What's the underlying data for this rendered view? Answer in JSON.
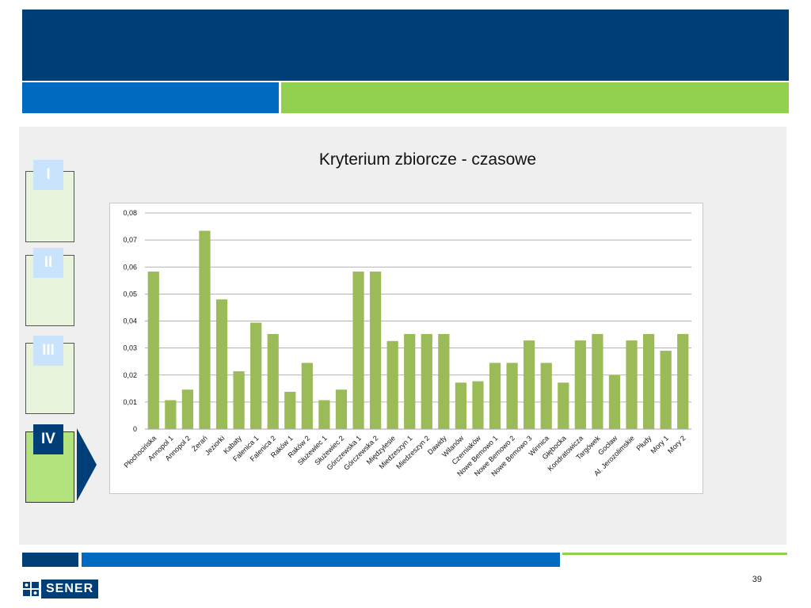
{
  "steps": [
    {
      "label": "I",
      "active": false
    },
    {
      "label": "II",
      "active": false
    },
    {
      "label": "III",
      "active": false
    },
    {
      "label": "IV",
      "active": true
    }
  ],
  "page_number": "39",
  "logo_text": "SENER",
  "colors": {
    "navy": "#003e78",
    "blue": "#0069c0",
    "green": "#92d050",
    "bar": "#9bbb59"
  },
  "chart_data": {
    "type": "bar",
    "title": "Kryterium zbiorcze - czasowe",
    "xlabel": "",
    "ylabel": "",
    "ylim": [
      0,
      0.08
    ],
    "yticks": [
      "0",
      "0,01",
      "0,02",
      "0,03",
      "0,04",
      "0,05",
      "0,06",
      "0,07",
      "0,08"
    ],
    "grid": true,
    "categories": [
      "Płochocińska",
      "Annopol 1",
      "Annopol 2",
      "Żerań",
      "Jeziorki",
      "Kabaty",
      "Falenica 1",
      "Falenica 2",
      "Raków 1",
      "Raków 2",
      "Służewiec 1",
      "Służewiec 2",
      "Górczewska 1",
      "Górczewska 2",
      "Międzylesie",
      "Miedzeszyn 1",
      "Miedzeszyn 2",
      "Dawidy",
      "Wilanów",
      "Czerniaków",
      "Nowe Bemowo 1",
      "Nowe Bemowo 2",
      "Nowe Bemowo 3",
      "Winnica",
      "Głębocka",
      "Kondratowicza",
      "Targówek",
      "Gocław",
      "Al. Jerozolimskie",
      "Płudy",
      "Mory 1",
      "Mory 2"
    ],
    "values": [
      0.0583,
      0.0107,
      0.0146,
      0.0734,
      0.048,
      0.0214,
      0.0394,
      0.0352,
      0.0138,
      0.0245,
      0.0107,
      0.0146,
      0.0583,
      0.0583,
      0.0326,
      0.0352,
      0.0352,
      0.0352,
      0.0172,
      0.0177,
      0.0245,
      0.0245,
      0.0328,
      0.0245,
      0.0172,
      0.0328,
      0.0352,
      0.0201,
      0.0328,
      0.0352,
      0.029,
      0.0352
    ]
  }
}
